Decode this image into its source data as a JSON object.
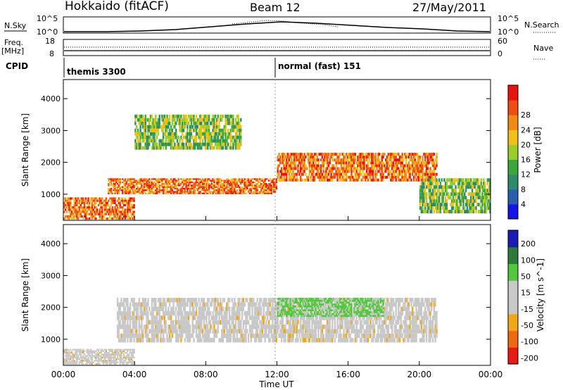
{
  "header": {
    "station": "Hokkaido (fitACF)",
    "beam": "Beam 12",
    "date": "27/May/2011"
  },
  "top_strip": {
    "left_label": "N.Sky",
    "left_ticks": [
      "10^5",
      "10^0"
    ],
    "right_label": "N.Search",
    "right_ticks": [
      "10^5",
      "10^0"
    ]
  },
  "freq_strip": {
    "left_label": "Freq.",
    "left_unit": "[MHz]",
    "left_ticks": [
      "18",
      "8"
    ],
    "right_label": "Nave",
    "right_ticks": [
      "60",
      "0"
    ]
  },
  "cpid": {
    "label": "CPID",
    "segments": [
      {
        "name": "themis 3300",
        "start_hour": 0
      },
      {
        "name": "normal (fast) 151",
        "start_hour": 12
      }
    ]
  },
  "x_axis": {
    "ticks": [
      "00:00",
      "04:00",
      "08:00",
      "12:00",
      "16:00",
      "20:00",
      "00:00"
    ],
    "label": "Time UT"
  },
  "chart_data": [
    {
      "type": "heatmap",
      "panel": "power",
      "ylabel": "Slant Range [km]",
      "yticks": [
        1000,
        2000,
        3000,
        4000
      ],
      "ylim": [
        180,
        4600
      ],
      "xlim_hours": [
        0,
        24
      ],
      "colorbar": {
        "label": "Power [dB]",
        "ticks": [
          4,
          8,
          12,
          16,
          20,
          24,
          28
        ],
        "colors": [
          "#1414e6",
          "#2a5fb0",
          "#2e8a6a",
          "#3aa83a",
          "#9ccc2c",
          "#f0c018",
          "#f08a14",
          "#f04e10",
          "#e81410"
        ]
      },
      "echo_bands": [
        {
          "t0": 0,
          "t1": 4,
          "r0": 200,
          "r1": 900,
          "level": "high"
        },
        {
          "t0": 2.5,
          "t1": 12,
          "r0": 1000,
          "r1": 1500,
          "level": "high"
        },
        {
          "t0": 12,
          "t1": 21,
          "r0": 1400,
          "r1": 2300,
          "level": "high"
        },
        {
          "t0": 4,
          "t1": 10,
          "r0": 2400,
          "r1": 3500,
          "level": "medium"
        },
        {
          "t0": 20,
          "t1": 24,
          "r0": 400,
          "r1": 1500,
          "level": "medium"
        }
      ]
    },
    {
      "type": "heatmap",
      "panel": "velocity",
      "ylabel": "Slant Range [km]",
      "yticks": [
        1000,
        2000,
        3000,
        4000
      ],
      "ylim": [
        180,
        4600
      ],
      "xlim_hours": [
        0,
        24
      ],
      "colorbar": {
        "label": "Velocity [m s^-1]",
        "ticks": [
          200,
          100,
          50,
          15,
          -15,
          -50,
          -100,
          -200
        ],
        "colors": [
          "#1a1ab4",
          "#2e7a3a",
          "#52c83c",
          "#c8c8c8",
          "#c8c8c8",
          "#f0a818",
          "#f06a14",
          "#e81a14"
        ]
      },
      "echo_bands": [
        {
          "t0": 3,
          "t1": 21,
          "r0": 900,
          "r1": 2300,
          "level": "ground"
        },
        {
          "t0": 12,
          "t1": 18,
          "r0": 1700,
          "r1": 2300,
          "level": "positive"
        },
        {
          "t0": 0,
          "t1": 4,
          "r0": 200,
          "r1": 700,
          "level": "ground"
        }
      ]
    }
  ]
}
